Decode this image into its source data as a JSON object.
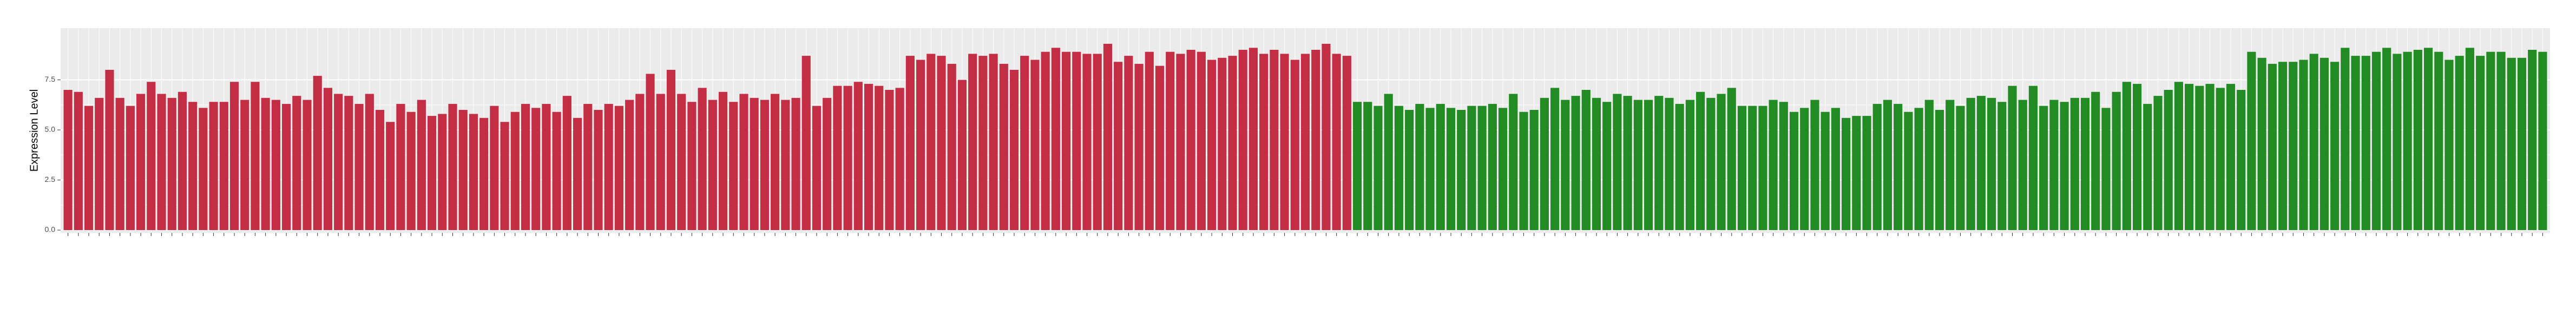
{
  "chart_data": {
    "type": "bar",
    "y_label": "Expression Level",
    "ylim": [
      0,
      10
    ],
    "yticks": [
      {
        "value": 0,
        "label": "0.0"
      },
      2.5,
      {
        "value": 5,
        "label": "5.0"
      },
      7.5
    ],
    "grid": true,
    "values": [
      7.0,
      6.9,
      6.2,
      6.6,
      8.0,
      6.6,
      6.2,
      6.8,
      7.4,
      6.8,
      6.6,
      6.9,
      6.4,
      6.1,
      6.4,
      6.4,
      7.4,
      6.5,
      7.4,
      6.6,
      6.5,
      6.3,
      6.7,
      6.5,
      7.7,
      7.1,
      6.8,
      6.7,
      6.3,
      6.8,
      6.0,
      5.4,
      6.3,
      5.9,
      6.5,
      5.7,
      5.8,
      6.3,
      6.0,
      5.8,
      5.6,
      6.2,
      5.4,
      5.9,
      6.3,
      6.1,
      6.3,
      5.9,
      6.7,
      5.6,
      6.3,
      6.0,
      6.3,
      6.2,
      6.5,
      6.8,
      7.8,
      6.8,
      8.0,
      6.8,
      6.4,
      7.1,
      6.5,
      6.9,
      6.4,
      6.8,
      6.6,
      6.5,
      6.8,
      6.5,
      6.6,
      8.7,
      6.2,
      6.6,
      7.2,
      7.2,
      7.4,
      7.3,
      7.2,
      7.0,
      7.1,
      8.7,
      8.5,
      8.8,
      8.7,
      8.3,
      7.5,
      8.8,
      8.7,
      8.8,
      8.3,
      8.0,
      8.7,
      8.5,
      8.9,
      9.1,
      8.9,
      8.9,
      8.8,
      8.8,
      9.3,
      8.4,
      8.7,
      8.3,
      8.9,
      8.2,
      8.9,
      8.8,
      9.0,
      8.9,
      8.5,
      8.6,
      8.7,
      9.0,
      9.1,
      8.8,
      9.0,
      8.8,
      8.5,
      8.8,
      9.0,
      9.3,
      8.8,
      8.7,
      6.4,
      6.4,
      6.2,
      6.8,
      6.2,
      6.0,
      6.3,
      6.1,
      6.3,
      6.1,
      6.0,
      6.2,
      6.2,
      6.3,
      6.1,
      6.8,
      5.9,
      6.0,
      6.6,
      7.1,
      6.5,
      6.7,
      7.0,
      6.6,
      6.4,
      6.8,
      6.7,
      6.5,
      6.5,
      6.7,
      6.6,
      6.3,
      6.5,
      6.9,
      6.6,
      6.8,
      7.1,
      6.2,
      6.2,
      6.2,
      6.5,
      6.4,
      5.9,
      6.1,
      6.5,
      5.9,
      6.1,
      5.6,
      5.7,
      5.7,
      6.3,
      6.5,
      6.3,
      5.9,
      6.1,
      6.5,
      6.0,
      6.5,
      6.2,
      6.6,
      6.7,
      6.6,
      6.4,
      7.2,
      6.5,
      7.2,
      6.2,
      6.5,
      6.4,
      6.6,
      6.6,
      6.9,
      6.1,
      6.9,
      7.4,
      7.3,
      6.3,
      6.7,
      7.0,
      7.4,
      7.3,
      7.2,
      7.3,
      7.1,
      7.3,
      7.0,
      8.9,
      8.6,
      8.3,
      8.4,
      8.4,
      8.5,
      8.8,
      8.6,
      8.4,
      9.1,
      8.7,
      8.7,
      8.9,
      9.1,
      8.8,
      8.9,
      9.0,
      9.1,
      8.9,
      8.5,
      8.7,
      9.1,
      8.7,
      8.9,
      8.9,
      8.6,
      8.6,
      9.0,
      8.9
    ],
    "colors": [
      "#c42e45",
      "#c42e45",
      "#c42e45",
      "#c42e45",
      "#c42e45",
      "#c42e45",
      "#c42e45",
      "#c42e45",
      "#c42e45",
      "#c42e45",
      "#c42e45",
      "#c42e45",
      "#c42e45",
      "#c42e45",
      "#c42e45",
      "#c42e45",
      "#c42e45",
      "#c42e45",
      "#c42e45",
      "#c42e45",
      "#c42e45",
      "#c42e45",
      "#c42e45",
      "#c42e45",
      "#c42e45",
      "#c42e45",
      "#c42e45",
      "#c42e45",
      "#c42e45",
      "#c42e45",
      "#c42e45",
      "#c42e45",
      "#c42e45",
      "#c42e45",
      "#c42e45",
      "#c42e45",
      "#c42e45",
      "#c42e45",
      "#c42e45",
      "#c42e45",
      "#c42e45",
      "#c42e45",
      "#c42e45",
      "#c42e45",
      "#c42e45",
      "#c42e45",
      "#c42e45",
      "#c42e45",
      "#c42e45",
      "#c42e45",
      "#c42e45",
      "#c42e45",
      "#c42e45",
      "#c42e45",
      "#c42e45",
      "#c42e45",
      "#c42e45",
      "#c42e45",
      "#c42e45",
      "#c42e45",
      "#c42e45",
      "#c42e45",
      "#c42e45",
      "#c42e45",
      "#c42e45",
      "#c42e45",
      "#c42e45",
      "#c42e45",
      "#c42e45",
      "#c42e45",
      "#c42e45",
      "#c42e45",
      "#c42e45",
      "#c42e45",
      "#c42e45",
      "#c42e45",
      "#c42e45",
      "#c42e45",
      "#c42e45",
      "#c42e45",
      "#c42e45",
      "#c42e45",
      "#c42e45",
      "#c42e45",
      "#c42e45",
      "#c42e45",
      "#c42e45",
      "#c42e45",
      "#c42e45",
      "#c42e45",
      "#c42e45",
      "#c42e45",
      "#c42e45",
      "#c42e45",
      "#c42e45",
      "#c42e45",
      "#c42e45",
      "#c42e45",
      "#c42e45",
      "#c42e45",
      "#c42e45",
      "#c42e45",
      "#c42e45",
      "#c42e45",
      "#c42e45",
      "#c42e45",
      "#c42e45",
      "#c42e45",
      "#c42e45",
      "#c42e45",
      "#c42e45",
      "#c42e45",
      "#c42e45",
      "#c42e45",
      "#c42e45",
      "#c42e45",
      "#c42e45",
      "#c42e45",
      "#c42e45",
      "#c42e45",
      "#c42e45",
      "#c42e45",
      "#c42e45",
      "#c42e45",
      "#238b23",
      "#238b23",
      "#238b23",
      "#238b23",
      "#238b23",
      "#238b23",
      "#238b23",
      "#238b23",
      "#238b23",
      "#238b23",
      "#238b23",
      "#238b23",
      "#238b23",
      "#238b23",
      "#238b23",
      "#238b23",
      "#238b23",
      "#238b23",
      "#238b23",
      "#238b23",
      "#238b23",
      "#238b23",
      "#238b23",
      "#238b23",
      "#238b23",
      "#238b23",
      "#238b23",
      "#238b23",
      "#238b23",
      "#238b23",
      "#238b23",
      "#238b23",
      "#238b23",
      "#238b23",
      "#238b23",
      "#238b23",
      "#238b23",
      "#238b23",
      "#238b23",
      "#238b23",
      "#238b23",
      "#238b23",
      "#238b23",
      "#238b23",
      "#238b23",
      "#238b23",
      "#238b23",
      "#238b23",
      "#238b23",
      "#238b23",
      "#238b23",
      "#238b23",
      "#238b23",
      "#238b23",
      "#238b23",
      "#238b23",
      "#238b23",
      "#238b23",
      "#238b23",
      "#238b23",
      "#238b23",
      "#238b23",
      "#238b23",
      "#238b23",
      "#238b23",
      "#238b23",
      "#238b23",
      "#238b23",
      "#238b23",
      "#238b23",
      "#238b23",
      "#238b23",
      "#238b23",
      "#238b23",
      "#238b23",
      "#238b23",
      "#238b23",
      "#238b23",
      "#238b23",
      "#238b23",
      "#238b23",
      "#238b23",
      "#238b23",
      "#238b23",
      "#238b23",
      "#238b23",
      "#238b23",
      "#238b23",
      "#238b23",
      "#238b23",
      "#238b23",
      "#238b23",
      "#238b23",
      "#238b23",
      "#238b23",
      "#238b23",
      "#238b23",
      "#238b23",
      "#238b23",
      "#238b23",
      "#238b23",
      "#238b23",
      "#238b23",
      "#238b23",
      "#238b23",
      "#238b23",
      "#238b23",
      "#238b23",
      "#238b23",
      "#238b23",
      "#238b23",
      "#238b23",
      "#238b23",
      "#238b23",
      "#238b23"
    ]
  }
}
